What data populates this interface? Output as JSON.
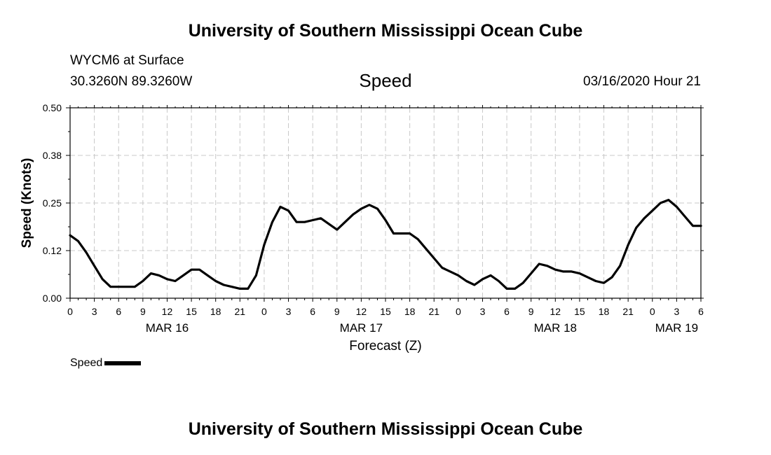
{
  "header": {
    "title": "University of Southern Mississippi Ocean Cube",
    "station": "WYCM6 at Surface",
    "coords": "30.3260N 89.3260W",
    "variable": "Speed",
    "run": "03/16/2020 Hour 21"
  },
  "footer": {
    "title": "University of Southern Mississippi Ocean Cube"
  },
  "legend": {
    "label": "Speed"
  },
  "chart_data": {
    "type": "line",
    "title": "Speed",
    "xlabel": "Forecast (Z)",
    "ylabel": "Speed (Knots)",
    "x_unit": "forecast hours from 00Z MAR 16",
    "xlim": [
      0,
      78
    ],
    "ylim": [
      0,
      0.5
    ],
    "yticks": [
      "0.00",
      "0.12",
      "0.25",
      "0.38",
      "0.50"
    ],
    "ytick_values": [
      0,
      0.125,
      0.25,
      0.375,
      0.5
    ],
    "xticks": [
      0,
      3,
      6,
      9,
      12,
      15,
      18,
      21,
      24,
      27,
      30,
      33,
      36,
      39,
      42,
      45,
      48,
      51,
      54,
      57,
      60,
      63,
      66,
      69,
      72,
      75,
      78
    ],
    "xtick_labels": [
      "0",
      "3",
      "6",
      "9",
      "12",
      "15",
      "18",
      "21",
      "0",
      "3",
      "6",
      "9",
      "12",
      "15",
      "18",
      "21",
      "0",
      "3",
      "6",
      "9",
      "12",
      "15",
      "18",
      "21",
      "0",
      "3",
      "6"
    ],
    "day_labels": [
      {
        "text": "MAR 16",
        "hour": 12
      },
      {
        "text": "MAR 17",
        "hour": 36
      },
      {
        "text": "MAR 18",
        "hour": 60
      },
      {
        "text": "MAR 19",
        "hour": 75
      }
    ],
    "grid": true,
    "series": [
      {
        "name": "Speed",
        "color": "#000000",
        "x": [
          0,
          1,
          2,
          3,
          4,
          5,
          6,
          7,
          8,
          9,
          10,
          11,
          12,
          13,
          14,
          15,
          16,
          17,
          18,
          19,
          20,
          21,
          22,
          23,
          24,
          25,
          26,
          27,
          28,
          29,
          30,
          31,
          32,
          33,
          34,
          35,
          36,
          37,
          38,
          39,
          40,
          41,
          42,
          43,
          44,
          45,
          46,
          47,
          48,
          49,
          50,
          51,
          52,
          53,
          54,
          55,
          56,
          57,
          58,
          59,
          60,
          61,
          62,
          63,
          64,
          65,
          66,
          67,
          68,
          69,
          70,
          71,
          72,
          73,
          74,
          75,
          76,
          77,
          78
        ],
        "values": [
          0.165,
          0.15,
          0.12,
          0.085,
          0.05,
          0.03,
          0.03,
          0.03,
          0.03,
          0.045,
          0.065,
          0.06,
          0.05,
          0.045,
          0.06,
          0.075,
          0.075,
          0.06,
          0.045,
          0.035,
          0.03,
          0.025,
          0.025,
          0.06,
          0.14,
          0.2,
          0.24,
          0.23,
          0.2,
          0.2,
          0.205,
          0.21,
          0.195,
          0.18,
          0.2,
          0.22,
          0.235,
          0.245,
          0.235,
          0.205,
          0.17,
          0.17,
          0.17,
          0.155,
          0.13,
          0.105,
          0.08,
          0.07,
          0.06,
          0.045,
          0.035,
          0.05,
          0.06,
          0.045,
          0.025,
          0.025,
          0.04,
          0.065,
          0.09,
          0.085,
          0.075,
          0.07,
          0.07,
          0.065,
          0.055,
          0.045,
          0.04,
          0.055,
          0.085,
          0.14,
          0.185,
          0.21,
          0.23,
          0.25,
          0.258,
          0.24,
          0.215,
          0.19,
          0.19
        ]
      }
    ]
  }
}
